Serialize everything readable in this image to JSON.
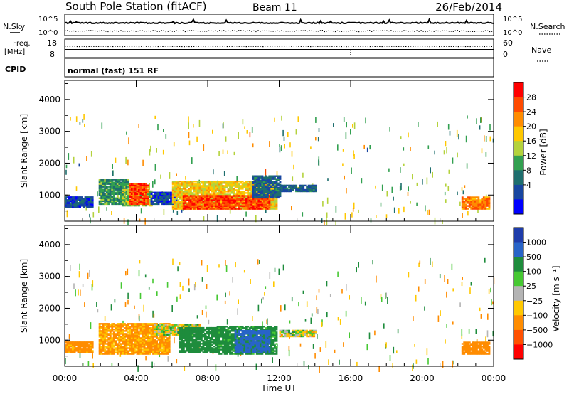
{
  "header": {
    "station": "South Pole Station (fitACF)",
    "beam": "Beam 11",
    "date": "26/Feb/2014"
  },
  "top_panels": {
    "nsky_label": "N.Sky",
    "nsky_ticks": [
      "10^5",
      "10^0"
    ],
    "nsearch_label": "N.Search",
    "nsearch_ticks": [
      "10^5",
      "10^0"
    ],
    "freq_label": "Freq.",
    "freq_unit": "[MHz]",
    "freq_ticks": [
      "18",
      "8"
    ],
    "nave_label": "Nave",
    "nave_ticks": [
      "60",
      "0"
    ],
    "cpid_label": "CPID",
    "cpid_value": "normal (fast) 151 RF"
  },
  "chart_data": [
    {
      "type": "heatmap",
      "name": "power",
      "ylabel": "Slant Range [km]",
      "xlabel": "",
      "ylim": [
        180,
        4600
      ],
      "xlim": [
        0,
        24
      ],
      "y_ticks": [
        "4000",
        "3000",
        "2000",
        "1000"
      ],
      "x_ticks": [
        "00:00",
        "04:00",
        "08:00",
        "12:00",
        "16:00",
        "20:00",
        "00:00"
      ],
      "colorbar": {
        "label": "Power [dB]",
        "ticks": [
          "28",
          "24",
          "20",
          "16",
          "12",
          "8",
          "4"
        ],
        "colors": [
          "#ff0000",
          "#ff4a00",
          "#ff8c00",
          "#ffc800",
          "#b4d23c",
          "#32a050",
          "#1e6e6e",
          "#1846a0",
          "#0000ff"
        ]
      },
      "regions": [
        {
          "t0": 0.0,
          "t1": 1.6,
          "r0": 600,
          "r1": 950,
          "level": 4
        },
        {
          "t0": 1.9,
          "t1": 3.6,
          "r0": 700,
          "r1": 1500,
          "level": 10
        },
        {
          "t0": 3.2,
          "t1": 4.8,
          "r0": 650,
          "r1": 1150,
          "level": 14
        },
        {
          "t0": 3.6,
          "t1": 4.6,
          "r0": 700,
          "r1": 1350,
          "level": 26
        },
        {
          "t0": 4.8,
          "t1": 6.2,
          "r0": 700,
          "r1": 1100,
          "level": 4
        },
        {
          "t0": 6.0,
          "t1": 11.8,
          "r0": 550,
          "r1": 1450,
          "level": 18
        },
        {
          "t0": 6.6,
          "t1": 11.4,
          "r0": 550,
          "r1": 1000,
          "level": 27
        },
        {
          "t0": 10.5,
          "t1": 12.0,
          "r0": 900,
          "r1": 1600,
          "level": 6
        },
        {
          "t0": 12.0,
          "t1": 14.0,
          "r0": 1100,
          "r1": 1300,
          "level": 6
        },
        {
          "t0": 22.2,
          "t1": 23.8,
          "r0": 550,
          "r1": 950,
          "level": 24
        }
      ]
    },
    {
      "type": "heatmap",
      "name": "velocity",
      "ylabel": "Slant Range [km]",
      "xlabel": "Time UT",
      "ylim": [
        180,
        4600
      ],
      "xlim": [
        0,
        24
      ],
      "y_ticks": [
        "4000",
        "3000",
        "2000",
        "1000"
      ],
      "x_ticks": [
        "00:00",
        "04:00",
        "08:00",
        "12:00",
        "16:00",
        "20:00",
        "00:00"
      ],
      "colorbar": {
        "label": "Velocity [m s⁻¹]",
        "ticks": [
          "1000",
          "500",
          "100",
          "25",
          "−25",
          "−100",
          "−500",
          "−1000"
        ],
        "colors": [
          "#1e3caa",
          "#2864c8",
          "#1e8c3c",
          "#46c832",
          "#b4b4b4",
          "#ffc800",
          "#ff8c00",
          "#ff5000",
          "#ff0000"
        ]
      },
      "regions": [
        {
          "t0": 0.0,
          "t1": 1.6,
          "r0": 600,
          "r1": 950,
          "level": -200
        },
        {
          "t0": 1.9,
          "t1": 5.8,
          "r0": 550,
          "r1": 1500,
          "level": -150
        },
        {
          "t0": 5.0,
          "t1": 7.5,
          "r0": 1150,
          "r1": 1500,
          "level": 0
        },
        {
          "t0": 6.4,
          "t1": 8.5,
          "r0": 600,
          "r1": 1400,
          "level": 300
        },
        {
          "t0": 8.5,
          "t1": 11.8,
          "r0": 550,
          "r1": 1450,
          "level": 200
        },
        {
          "t0": 9.5,
          "t1": 11.4,
          "r0": 600,
          "r1": 1300,
          "level": 600
        },
        {
          "t0": 12.0,
          "t1": 14.0,
          "r0": 1100,
          "r1": 1300,
          "level": 0
        },
        {
          "t0": 22.2,
          "t1": 23.8,
          "r0": 550,
          "r1": 950,
          "level": -300
        }
      ]
    }
  ]
}
